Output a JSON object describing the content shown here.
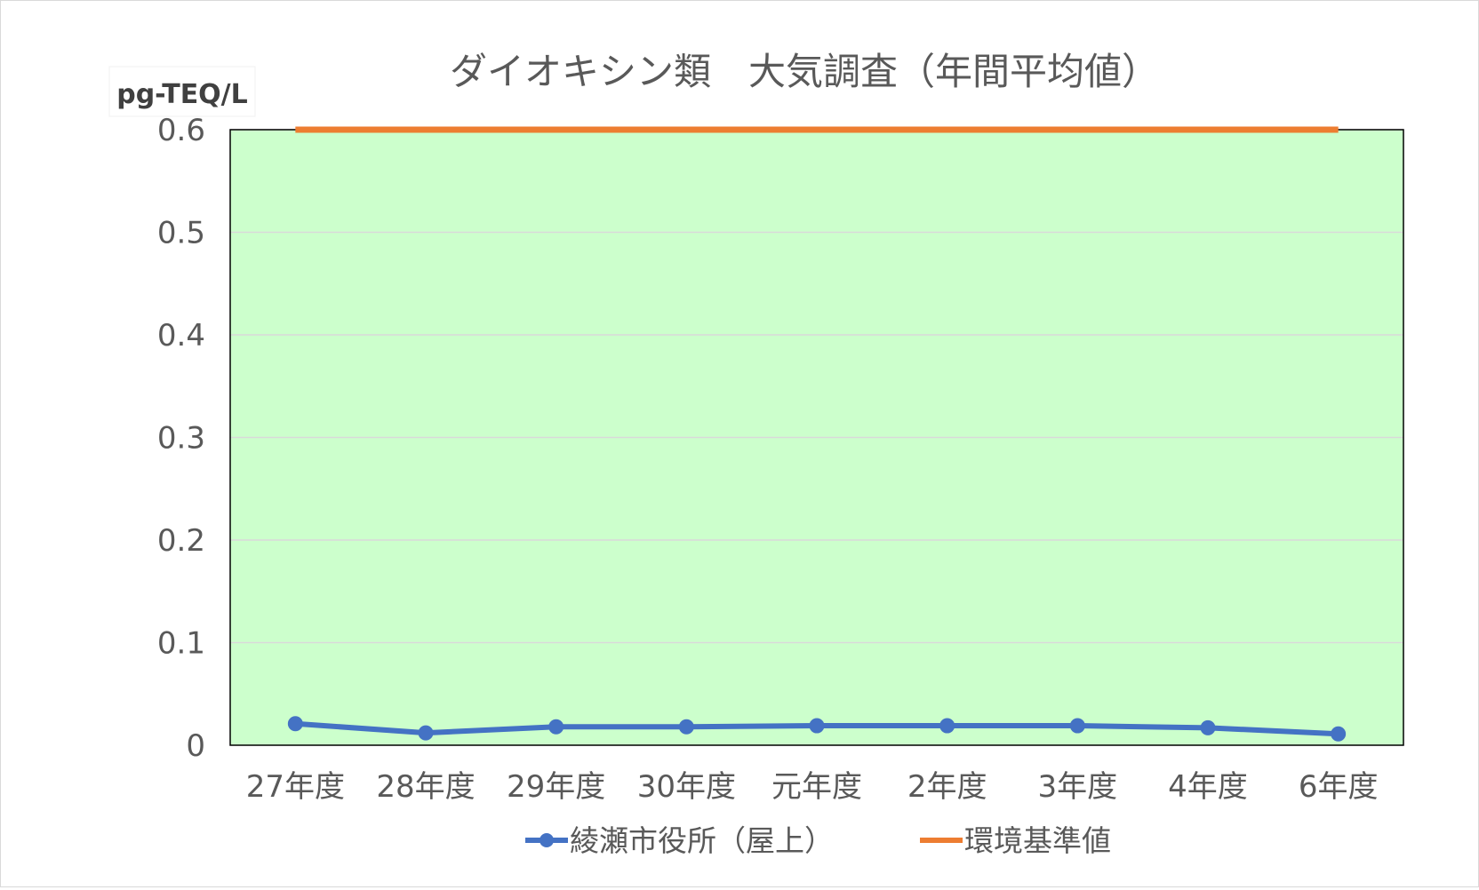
{
  "chart_data": {
    "type": "line",
    "title": "ダイオキシン類　大気調査（年間平均値）",
    "ylabel": "pg-TEQ/L",
    "xlabel": "",
    "categories": [
      "27年度",
      "28年度",
      "29年度",
      "30年度",
      "元年度",
      "2年度",
      "3年度",
      "4年度",
      "6年度"
    ],
    "ylim": [
      0,
      0.6
    ],
    "yticks": [
      "0",
      "0.1",
      "0.2",
      "0.3",
      "0.4",
      "0.5",
      "0.6"
    ],
    "grid": true,
    "legend_position": "bottom",
    "plot_background": "#ccffcc",
    "series": [
      {
        "name": "綾瀬市役所（屋上）",
        "color": "#4472c4",
        "marker": "circle",
        "values": [
          0.021,
          0.012,
          0.018,
          0.018,
          0.019,
          0.019,
          0.019,
          0.017,
          0.011
        ]
      },
      {
        "name": "環境基準値",
        "color": "#ed7d31",
        "marker": "none",
        "values": [
          0.6,
          0.6,
          0.6,
          0.6,
          0.6,
          0.6,
          0.6,
          0.6,
          0.6
        ]
      }
    ]
  }
}
